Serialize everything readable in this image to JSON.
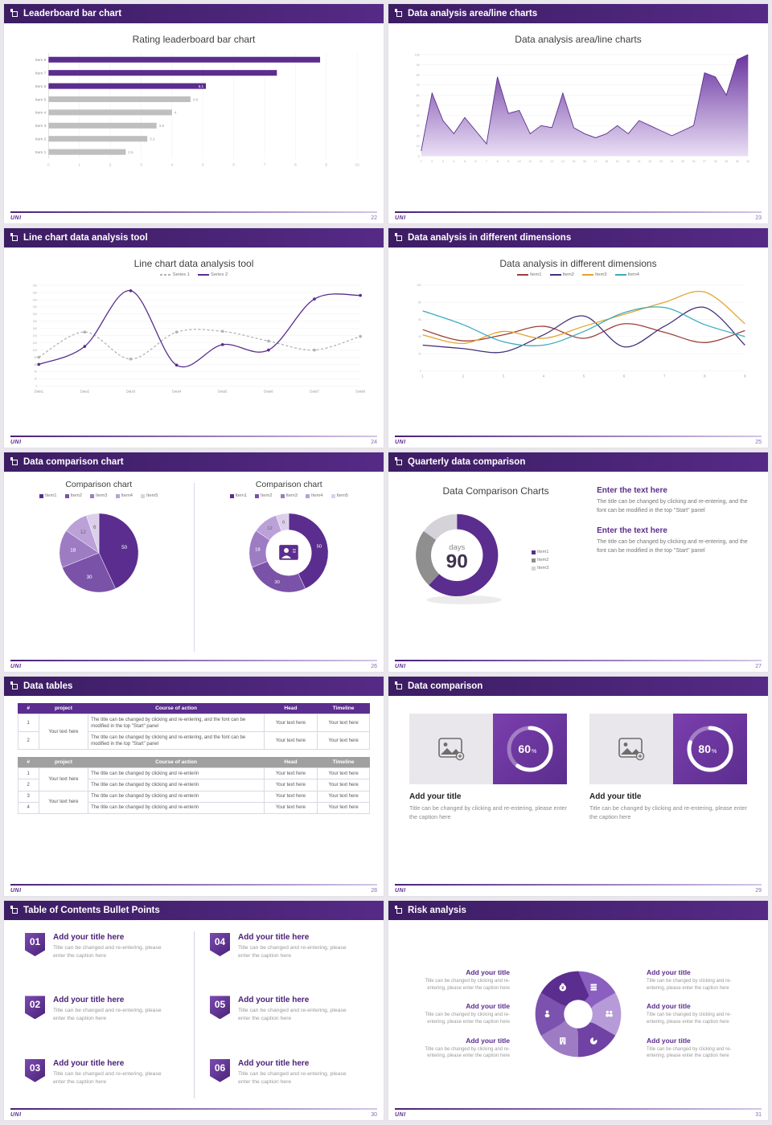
{
  "footer": {
    "logo": "UNI"
  },
  "icons": {
    "header_bullet": "square-bullet",
    "image_placeholder": "picture-with-plus",
    "wheel_icons": [
      "coins",
      "people",
      "pie-chart",
      "building",
      "person",
      "moneybag"
    ]
  },
  "theme": {
    "header_purple": "#4a2178",
    "accent": "#5b2d8e",
    "gray": "#bfbfbf"
  },
  "slides": {
    "s22": {
      "header": "Leaderboard bar chart",
      "page": "22",
      "title": "Rating leaderboard bar chart",
      "chart": {
        "type": "hbar",
        "categories": [
          "Item 1",
          "Item 2",
          "Item 3",
          "Item 4",
          "Item 5",
          "Item 6",
          "Item 7",
          "Item 8"
        ],
        "values": [
          2.5,
          3.2,
          3.5,
          4,
          4.6,
          5.1,
          7.4,
          8.8
        ],
        "value_labels": [
          "2.5",
          "3.2",
          "3.5",
          "4",
          "4.6",
          "5.1",
          "",
          ""
        ],
        "bar_colors": [
          "#bfbfbf",
          "#bfbfbf",
          "#bfbfbf",
          "#bfbfbf",
          "#bfbfbf",
          "#5b2d8e",
          "#5b2d8e",
          "#5b2d8e"
        ],
        "xmax": 10,
        "xticks": [
          0,
          1,
          2,
          3,
          4,
          5,
          6,
          7,
          8,
          9,
          10
        ]
      }
    },
    "s23": {
      "header": "Data analysis area/line charts",
      "page": "23",
      "title": "Data analysis area/line charts",
      "chart": {
        "type": "area",
        "x": [
          1,
          2,
          3,
          4,
          5,
          6,
          7,
          8,
          9,
          10,
          11,
          12,
          13,
          14,
          15,
          16,
          17,
          18,
          19,
          20,
          21,
          22,
          23,
          24,
          25,
          26,
          27,
          28,
          29,
          30,
          31
        ],
        "values": [
          5,
          62,
          35,
          22,
          38,
          25,
          12,
          78,
          42,
          45,
          22,
          30,
          28,
          62,
          28,
          22,
          18,
          22,
          30,
          22,
          35,
          30,
          25,
          20,
          25,
          30,
          82,
          78,
          60,
          95,
          100
        ],
        "ymax": 100,
        "ystep": 10,
        "line_color": "#5b2d8e",
        "fill_from": "#6a35a0",
        "fill_to": "#eadff5"
      }
    },
    "s24": {
      "header": "Line chart data analysis tool",
      "page": "24",
      "title": "Line chart data analysis tool",
      "chart": {
        "type": "multiline",
        "categories": [
          "Data1",
          "Data2",
          "Data3",
          "Data4",
          "Data5",
          "Data6",
          "Data7",
          "Data8"
        ],
        "ymax": 280,
        "ystep": 20,
        "dots": true,
        "smooth": true,
        "series": [
          {
            "name": "Series 1",
            "color": "#b3b3b3",
            "dash": "3,2.5",
            "values": [
              80,
              150,
              75,
              150,
              152,
              125,
              100,
              138
            ]
          },
          {
            "name": "Series 2",
            "color": "#5b2d8e",
            "dash": "",
            "values": [
              60,
              110,
              265,
              58,
              115,
              100,
              242,
              252
            ]
          }
        ]
      }
    },
    "s25": {
      "header": "Data analysis in different dimensions",
      "page": "25",
      "title": "Data analysis in different dimensions",
      "chart": {
        "type": "multiline",
        "categories": [
          "1",
          "2",
          "3",
          "4",
          "5",
          "6",
          "7",
          "8",
          "9"
        ],
        "ymax": 100,
        "ystep": 20,
        "dots": false,
        "smooth": true,
        "series": [
          {
            "name": "Item1",
            "color": "#9c3f3a",
            "dash": "",
            "values": [
              48,
              35,
              42,
              52,
              38,
              55,
              45,
              33,
              47
            ]
          },
          {
            "name": "Item2",
            "color": "#42307a",
            "dash": "",
            "values": [
              30,
              26,
              22,
              42,
              64,
              28,
              52,
              74,
              30
            ]
          },
          {
            "name": "Item3",
            "color": "#e3a32f",
            "dash": "",
            "values": [
              42,
              32,
              46,
              38,
              52,
              66,
              80,
              92,
              55
            ]
          },
          {
            "name": "Item4",
            "color": "#3aacbe",
            "dash": "",
            "values": [
              70,
              54,
              34,
              30,
              46,
              68,
              74,
              54,
              40
            ]
          }
        ]
      }
    },
    "s26": {
      "header": "Data comparison chart",
      "page": "26",
      "left_title": "Comparison chart",
      "right_title": "Comparison chart",
      "legend": [
        "Item1",
        "Item2",
        "Item3",
        "Item4",
        "Item5"
      ],
      "colors": [
        "#5b2d8e",
        "#7a52a8",
        "#9d7cc4",
        "#bba1d8",
        "#dccfec"
      ],
      "pie": {
        "type": "pie",
        "values": [
          50,
          30,
          18,
          12,
          6
        ],
        "colors": [
          "#5b2d8e",
          "#7a52a8",
          "#9d7cc4",
          "#bba1d8",
          "#dccfec"
        ],
        "labels": [
          "50",
          "30",
          "18",
          "12",
          "6"
        ]
      },
      "donut": {
        "type": "donut",
        "values": [
          50,
          30,
          18,
          12,
          6
        ],
        "colors": [
          "#5b2d8e",
          "#7a52a8",
          "#9d7cc4",
          "#bba1d8",
          "#dccfec"
        ],
        "labels": [
          "50",
          "30",
          "18",
          "12",
          "6"
        ],
        "icon": "person"
      }
    },
    "s27": {
      "header": "Quarterly data comparison",
      "page": "27",
      "title": "Data Comparison Charts",
      "donut": {
        "type": "donut27",
        "values": [
          62,
          23,
          15
        ],
        "colors": [
          "#5b2d8e",
          "#8f8f8f",
          "#d6d2da"
        ],
        "center_top": "days",
        "center_big": "90"
      },
      "legend_cfg": {
        "legend": [
          "Item1",
          "Item2",
          "Item3"
        ],
        "colors": [
          "#5b2d8e",
          "#8f8f8f",
          "#d6d2da"
        ]
      },
      "blocks": [
        {
          "heading": "Enter the text here",
          "body": "The title can be changed by clicking and re-entering, and the font can be modified in the top \"Start\" panel"
        },
        {
          "heading": "Enter the text here",
          "body": "The title can be changed by clicking and re-entering, and the font can be modified in the top \"Start\" panel"
        }
      ]
    },
    "s28": {
      "header": "Data tables",
      "page": "28",
      "columns": [
        "#",
        "project",
        "Course of action",
        "Head",
        "Timeline"
      ],
      "cell": "Your text here",
      "t1_project": "Your text here",
      "t1_rows": [
        {
          "num": "1",
          "course": "The title can be changed by clicking and re-entering, and the font can be modified in the top \"Start\" panel"
        },
        {
          "num": "2",
          "course": "The title can be changed by clicking and re-entering, and the font can be modified in the top \"Start\" panel"
        }
      ],
      "t2_project_a": "Your text here",
      "t2_project_b": "Your text here",
      "t2_rows": [
        {
          "num": "1",
          "course": "The title can be changed by clicking and re-enterin"
        },
        {
          "num": "2",
          "course": "The title can be changed by clicking and re-enterin"
        },
        {
          "num": "3",
          "course": "The title can be changed by clicking and re-enterin"
        },
        {
          "num": "4",
          "course": "The title can be changed by clicking and re-enterin"
        }
      ]
    },
    "s29": {
      "header": "Data comparison",
      "page": "29",
      "cards": [
        {
          "ring": {
            "type": "ring",
            "percent": 60,
            "label": "60",
            "suffix": "%"
          },
          "title": "Add your title",
          "caption": "Title can be changed by clicking and re-entering, please enter the caption here"
        },
        {
          "ring": {
            "type": "ring",
            "percent": 80,
            "label": "80",
            "suffix": "%"
          },
          "title": "Add your title",
          "caption": "Title can be changed by clicking and re-entering, please enter the caption here"
        }
      ]
    },
    "s30": {
      "header": "Table of Contents Bullet Points",
      "page": "30",
      "items": [
        {
          "num": "01",
          "title": "Add your title here",
          "caption": "Title can be changed and re-entering, please enter the caption here"
        },
        {
          "num": "04",
          "title": "Add your title here",
          "caption": "Title can be changed and re-entering, please enter the caption here"
        },
        {
          "num": "02",
          "title": "Add your title here",
          "caption": "Title can be changed and re-entering, please enter the caption here"
        },
        {
          "num": "05",
          "title": "Add your title here",
          "caption": "Title can be changed and re-entering, please enter the caption here"
        },
        {
          "num": "03",
          "title": "Add your title here",
          "caption": "Title can be changed and re-entering, please enter the caption here"
        },
        {
          "num": "06",
          "title": "Add your title here",
          "caption": "Title can be changed and re-entering, please enter the caption here"
        }
      ]
    },
    "s31": {
      "header": "Risk analysis",
      "page": "31",
      "wheel": {
        "type": "wheel",
        "colors": [
          "#8a5fc0",
          "#b79bd8",
          "#6f42a3",
          "#9d7cc4",
          "#7b52ae",
          "#5b2d8e"
        ],
        "icons": [
          "coins",
          "people",
          "pie",
          "building",
          "person",
          "moneybag"
        ]
      },
      "blocks_left": [
        {
          "title": "Add your title",
          "caption": "Title can be changed by clicking and re-entering, please enter the caption here"
        },
        {
          "title": "Add your title",
          "caption": "Title can be changed by clicking and re-entering, please enter the caption here"
        },
        {
          "title": "Add your title",
          "caption": "Title can be changed by clicking and re-entering, please enter the caption here"
        }
      ],
      "blocks_right": [
        {
          "title": "Add your title",
          "caption": "Title can be changed by clicking and re-entering, please enter the caption here"
        },
        {
          "title": "Add your title",
          "caption": "Title can be changed by clicking and re-entering, please enter the caption here"
        },
        {
          "title": "Add your title",
          "caption": "Title can be changed by clicking and re-entering, please enter the caption here"
        }
      ]
    }
  }
}
